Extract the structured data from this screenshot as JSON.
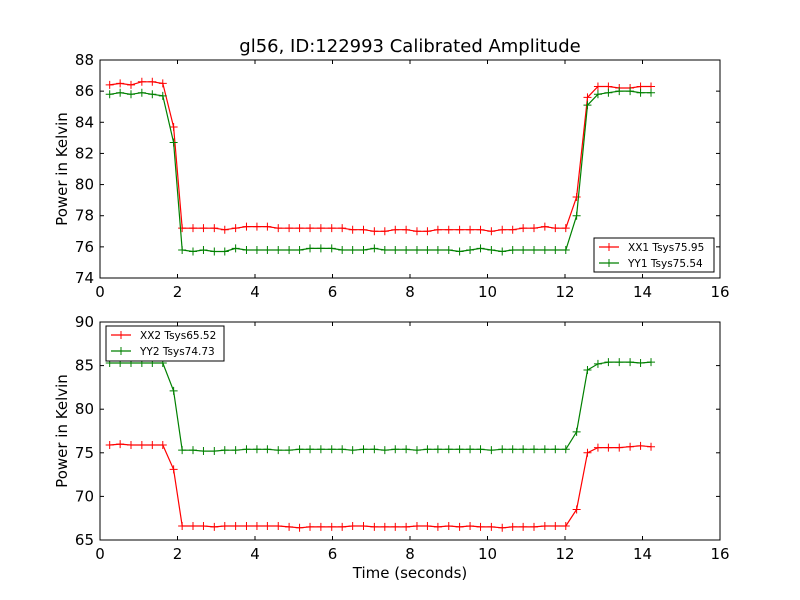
{
  "colors": {
    "xx": "#ff0000",
    "yy": "#008000",
    "axes": "#000000",
    "background": "#ffffff"
  },
  "chart_data": [
    {
      "type": "line",
      "title": "gl56, ID:122993 Calibrated Amplitude",
      "xlabel": "",
      "ylabel": "Power in Kelvin",
      "xlim": [
        0,
        16
      ],
      "ylim": [
        74,
        88
      ],
      "xticks": [
        "0",
        "2",
        "4",
        "6",
        "8",
        "10",
        "12",
        "14",
        "16"
      ],
      "yticks": [
        "74",
        "76",
        "78",
        "80",
        "82",
        "84",
        "86",
        "88"
      ],
      "grid": false,
      "legend": "lower-right",
      "x": [
        0.25,
        0.52,
        0.8,
        1.08,
        1.35,
        1.62,
        1.9,
        2.12,
        2.4,
        2.67,
        2.95,
        3.22,
        3.5,
        3.78,
        4.05,
        4.32,
        4.6,
        4.88,
        5.15,
        5.42,
        5.7,
        5.98,
        6.25,
        6.52,
        6.8,
        7.08,
        7.35,
        7.62,
        7.9,
        8.18,
        8.45,
        8.72,
        9.0,
        9.28,
        9.55,
        9.82,
        10.1,
        10.38,
        10.65,
        10.92,
        11.2,
        11.48,
        11.75,
        12.02,
        12.3,
        12.58,
        12.85,
        13.12,
        13.4,
        13.68,
        13.95,
        14.22
      ],
      "series": [
        {
          "name": "XX1 Tsys75.95",
          "color": "#ff0000",
          "values": [
            86.4,
            86.5,
            86.4,
            86.6,
            86.6,
            86.5,
            83.7,
            77.2,
            77.2,
            77.2,
            77.2,
            77.1,
            77.2,
            77.3,
            77.3,
            77.3,
            77.2,
            77.2,
            77.2,
            77.2,
            77.2,
            77.2,
            77.2,
            77.1,
            77.1,
            77.0,
            77.0,
            77.1,
            77.1,
            77.0,
            77.0,
            77.1,
            77.1,
            77.1,
            77.1,
            77.1,
            77.0,
            77.1,
            77.1,
            77.2,
            77.2,
            77.3,
            77.2,
            77.2,
            79.2,
            85.6,
            86.3,
            86.3,
            86.2,
            86.2,
            86.3,
            86.3
          ]
        },
        {
          "name": "YY1 Tsys75.54",
          "color": "#008000",
          "values": [
            85.8,
            85.9,
            85.8,
            85.9,
            85.8,
            85.7,
            82.7,
            75.8,
            75.7,
            75.8,
            75.7,
            75.7,
            75.9,
            75.8,
            75.8,
            75.8,
            75.8,
            75.8,
            75.8,
            75.9,
            75.9,
            75.9,
            75.8,
            75.8,
            75.8,
            75.9,
            75.8,
            75.8,
            75.8,
            75.8,
            75.8,
            75.8,
            75.8,
            75.7,
            75.8,
            75.9,
            75.8,
            75.7,
            75.8,
            75.8,
            75.8,
            75.8,
            75.8,
            75.8,
            78.0,
            85.1,
            85.8,
            85.9,
            86.0,
            86.0,
            85.9,
            85.9
          ]
        }
      ]
    },
    {
      "type": "line",
      "title": "",
      "xlabel": "Time (seconds)",
      "ylabel": "Power in Kelvin",
      "xlim": [
        0,
        16
      ],
      "ylim": [
        65,
        90
      ],
      "xticks": [
        "0",
        "2",
        "4",
        "6",
        "8",
        "10",
        "12",
        "14",
        "16"
      ],
      "yticks": [
        "65",
        "70",
        "75",
        "80",
        "85",
        "90"
      ],
      "grid": false,
      "legend": "upper-left",
      "x": [
        0.25,
        0.52,
        0.8,
        1.08,
        1.35,
        1.62,
        1.9,
        2.12,
        2.4,
        2.67,
        2.95,
        3.22,
        3.5,
        3.78,
        4.05,
        4.32,
        4.6,
        4.88,
        5.15,
        5.42,
        5.7,
        5.98,
        6.25,
        6.52,
        6.8,
        7.08,
        7.35,
        7.62,
        7.9,
        8.18,
        8.45,
        8.72,
        9.0,
        9.28,
        9.55,
        9.82,
        10.1,
        10.38,
        10.65,
        10.92,
        11.2,
        11.48,
        11.75,
        12.02,
        12.3,
        12.58,
        12.85,
        13.12,
        13.4,
        13.68,
        13.95,
        14.22
      ],
      "series": [
        {
          "name": "XX2 Tsys65.52",
          "color": "#ff0000",
          "values": [
            75.9,
            76.0,
            75.9,
            75.9,
            75.9,
            75.9,
            73.1,
            66.6,
            66.6,
            66.6,
            66.5,
            66.6,
            66.6,
            66.6,
            66.6,
            66.6,
            66.6,
            66.5,
            66.4,
            66.5,
            66.5,
            66.5,
            66.5,
            66.6,
            66.6,
            66.5,
            66.5,
            66.5,
            66.5,
            66.6,
            66.6,
            66.5,
            66.6,
            66.5,
            66.6,
            66.5,
            66.5,
            66.4,
            66.5,
            66.5,
            66.5,
            66.6,
            66.6,
            66.6,
            68.5,
            75.0,
            75.6,
            75.6,
            75.6,
            75.7,
            75.8,
            75.7
          ]
        },
        {
          "name": "YY2 Tsys74.73",
          "color": "#008000",
          "values": [
            85.3,
            85.3,
            85.3,
            85.3,
            85.3,
            85.3,
            82.1,
            75.3,
            75.3,
            75.2,
            75.2,
            75.3,
            75.3,
            75.4,
            75.4,
            75.4,
            75.3,
            75.3,
            75.4,
            75.4,
            75.4,
            75.4,
            75.4,
            75.3,
            75.4,
            75.4,
            75.3,
            75.4,
            75.4,
            75.3,
            75.4,
            75.4,
            75.4,
            75.4,
            75.4,
            75.4,
            75.3,
            75.4,
            75.4,
            75.4,
            75.4,
            75.4,
            75.4,
            75.4,
            77.4,
            84.5,
            85.2,
            85.4,
            85.4,
            85.4,
            85.3,
            85.4
          ]
        }
      ]
    }
  ]
}
